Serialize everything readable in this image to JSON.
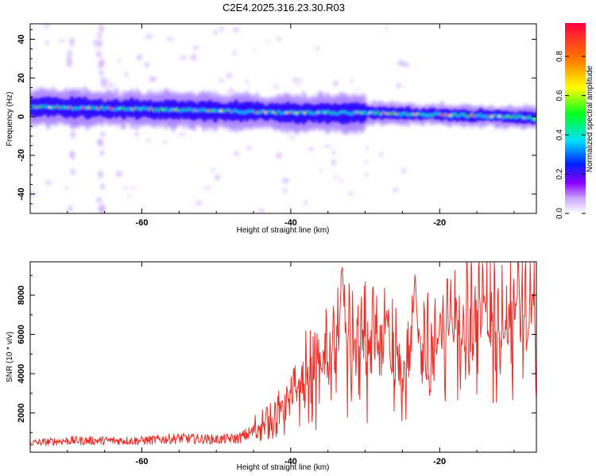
{
  "title": "C2E4.2025.316.23.30.R03",
  "chart_data": [
    {
      "type": "heatmap",
      "xlabel": "Height of straight line (km)",
      "ylabel": "Frequency (Hz)",
      "xlim": [
        -75,
        -7
      ],
      "ylim": [
        -50,
        48
      ],
      "xticks": [
        -60,
        -40,
        -20
      ],
      "yticks": [
        -40,
        -20,
        0,
        20,
        40
      ],
      "colorbar": {
        "label": "Normalized spectral amplitude",
        "range": [
          0,
          0.97
        ],
        "ticks": [
          0.0,
          0.2,
          0.4,
          0.6,
          0.8
        ],
        "colormap": [
          "#ffffff",
          "#8a00ff",
          "#0020ff",
          "#00e0ff",
          "#00ff20",
          "#ffff00",
          "#ff8000",
          "#ff0040"
        ]
      },
      "ridge": {
        "x": [
          -75,
          -60,
          -50,
          -40,
          -30,
          -20,
          -10,
          -7
        ],
        "frequency_hz": [
          5,
          4,
          3,
          2,
          2,
          1,
          0,
          -1
        ]
      }
    },
    {
      "type": "line",
      "xlabel": "Height of straight line (km)",
      "ylabel": "SNR (10 * v/v)",
      "xlim": [
        -75,
        -7
      ],
      "ylim": [
        0,
        9700
      ],
      "xticks": [
        -60,
        -40,
        -20
      ],
      "yticks": [
        2000,
        4000,
        6000,
        8000
      ],
      "color": "#e8312a",
      "envelope": {
        "x": [
          -75,
          -70,
          -65,
          -60,
          -55,
          -50,
          -47,
          -45,
          -42,
          -40,
          -38,
          -36,
          -34,
          -33,
          -32,
          -30,
          -28,
          -26,
          -25,
          -24,
          -23,
          -22,
          -20,
          -18,
          -16,
          -15,
          -13,
          -12,
          -10,
          -9,
          -8,
          -7
        ],
        "y": [
          400,
          500,
          500,
          500,
          600,
          550,
          600,
          900,
          1500,
          2200,
          3000,
          3700,
          4000,
          4500,
          4300,
          4400,
          4200,
          3800,
          3500,
          4000,
          4200,
          4000,
          4200,
          4800,
          5200,
          5400,
          5000,
          5200,
          5300,
          5000,
          5200,
          5400
        ]
      },
      "peaks": [
        {
          "x": -33.1,
          "y": 9700
        },
        {
          "x": -23.3,
          "y": 9200
        },
        {
          "x": -27.1,
          "y": 7200
        },
        {
          "x": -14.0,
          "y": 8100
        },
        {
          "x": -9.6,
          "y": 8000
        },
        {
          "x": -7.8,
          "y": 6900
        },
        {
          "x": -18.5,
          "y": 7200
        },
        {
          "x": -20.0,
          "y": 6300
        },
        {
          "x": -11.2,
          "y": 6000
        }
      ]
    }
  ]
}
